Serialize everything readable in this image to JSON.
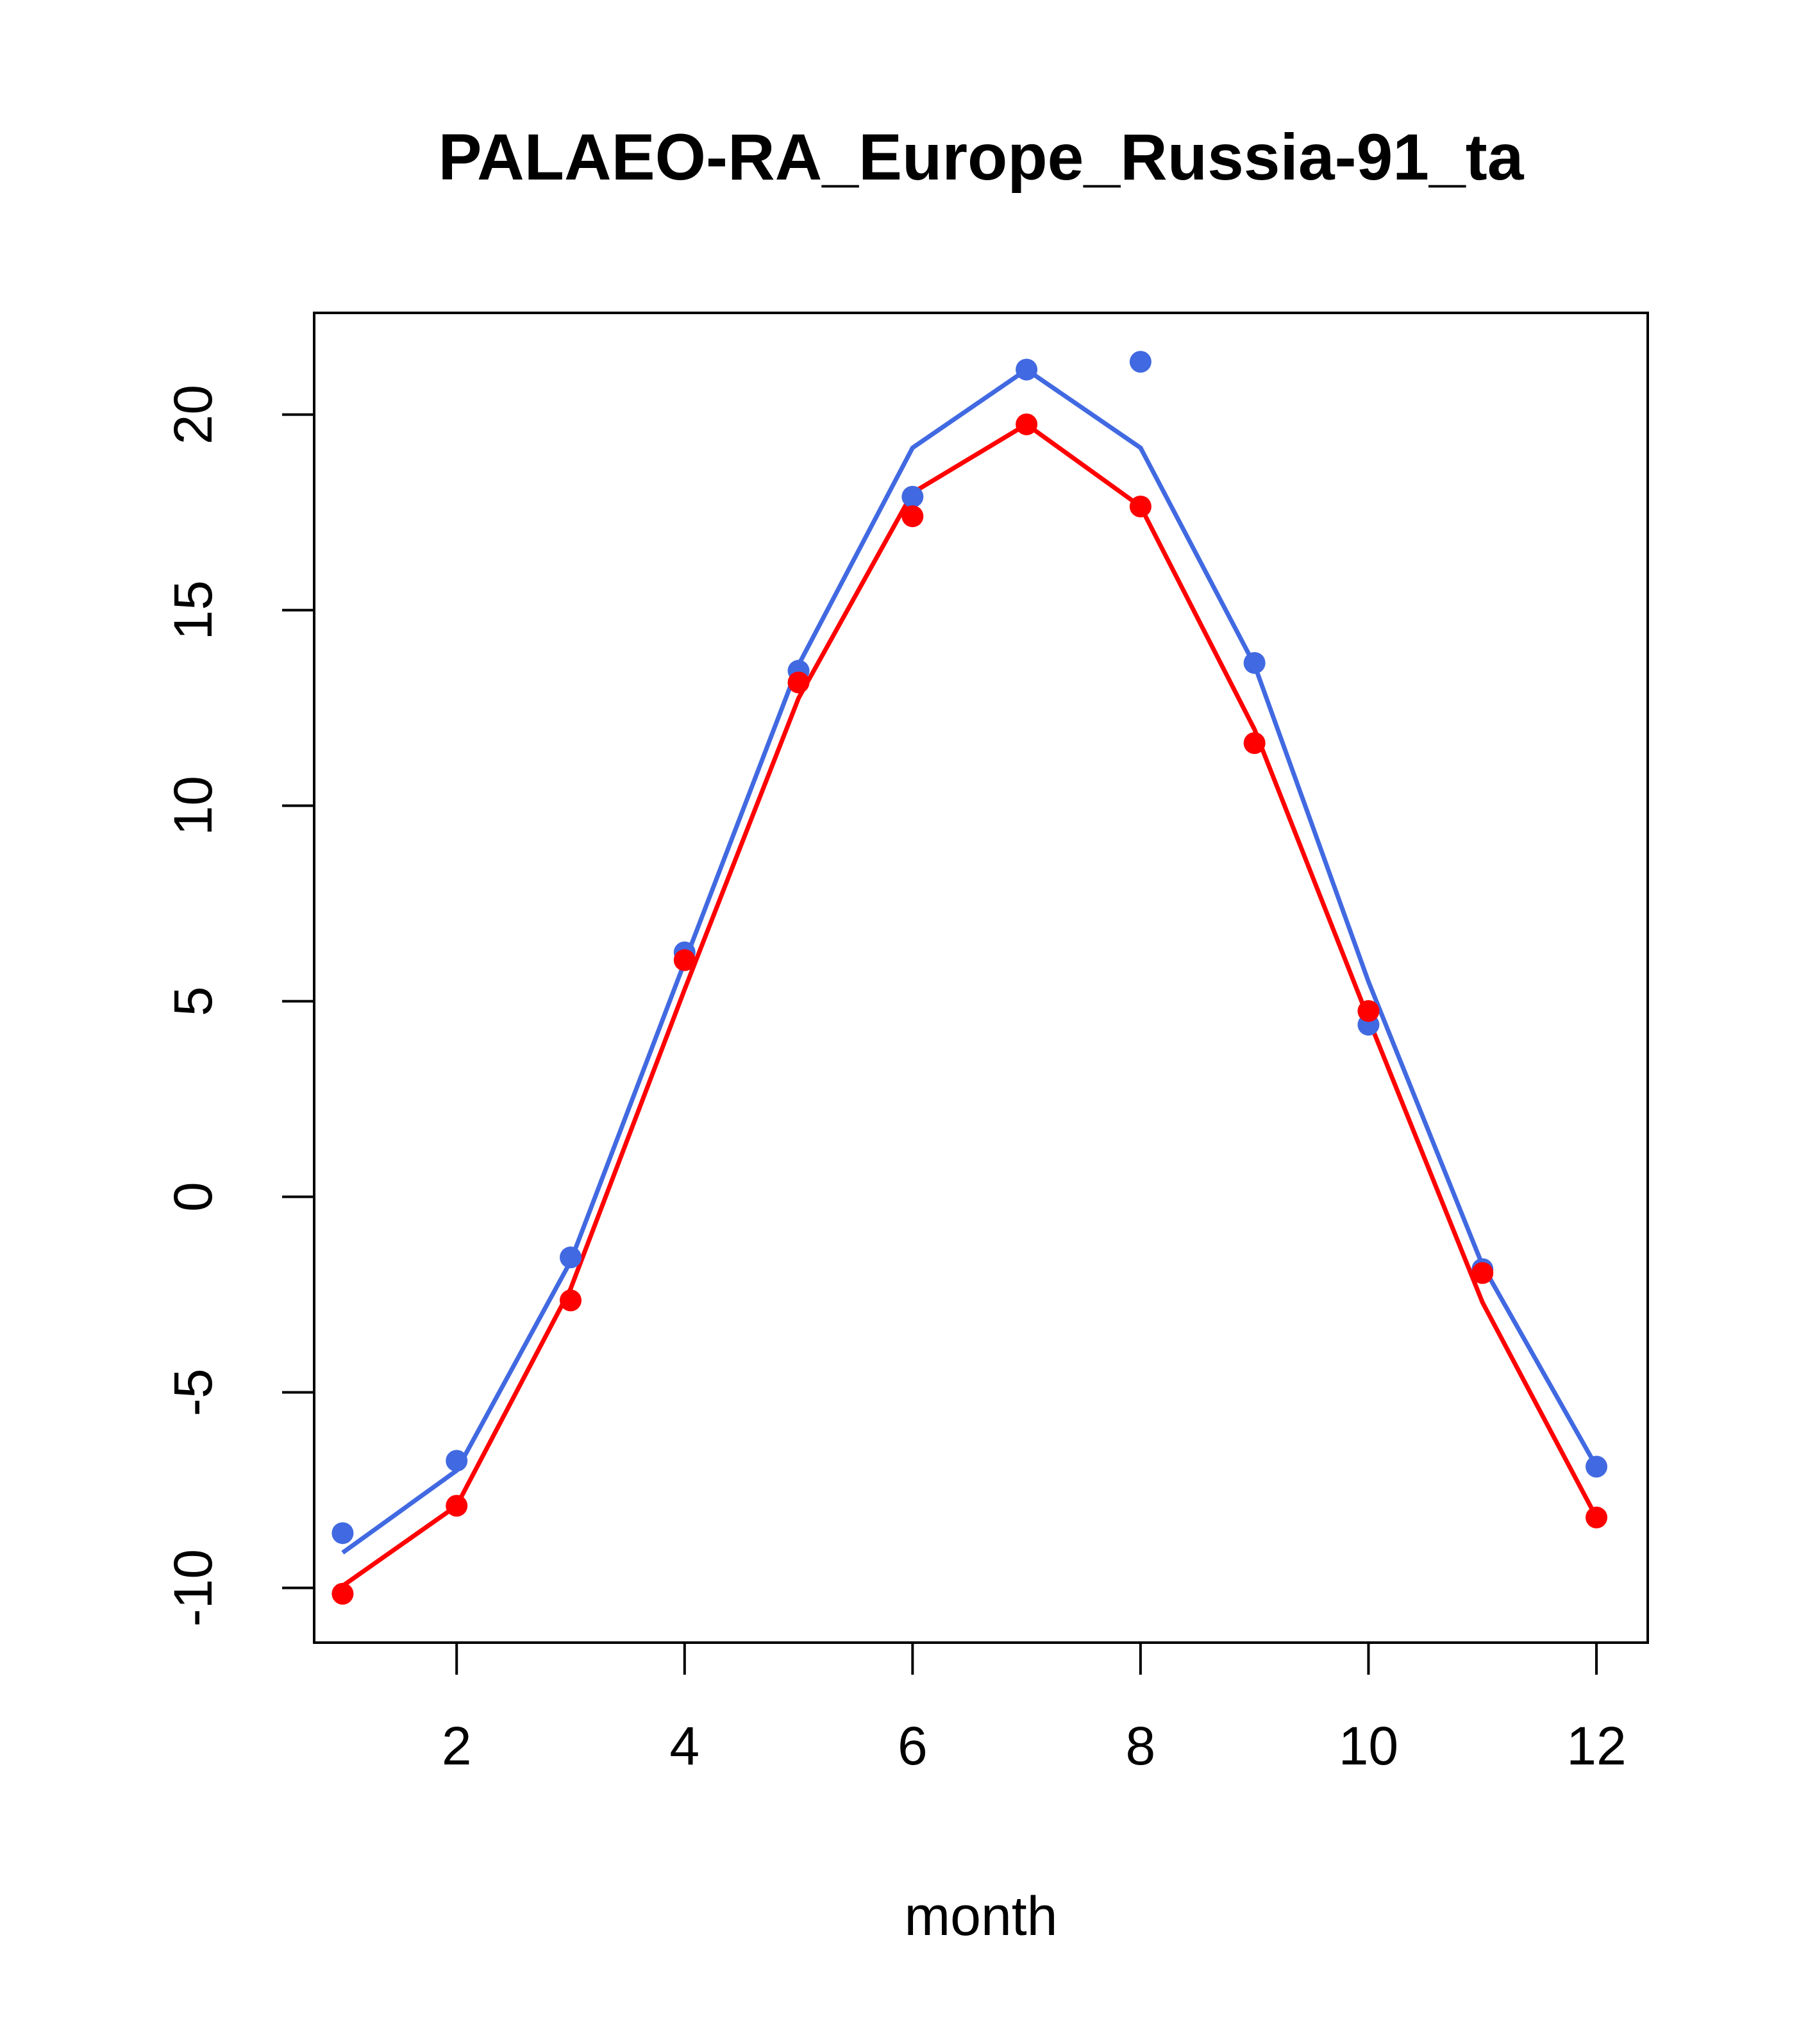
{
  "chart_data": {
    "type": "line",
    "title": "PALAEO-RA_Europe_Russia-91_ta",
    "xlabel": "month",
    "ylabel": "",
    "xlim": [
      0.75,
      12.45
    ],
    "ylim": [
      -11.4,
      22.6
    ],
    "x_ticks": [
      2,
      4,
      6,
      8,
      10,
      12
    ],
    "x_tick_labels": [
      "2",
      "4",
      "6",
      "8",
      "10",
      "12"
    ],
    "y_ticks": [
      -10,
      -5,
      0,
      5,
      10,
      15,
      20
    ],
    "y_tick_labels": [
      "-10",
      "-5",
      "0",
      "5",
      "10",
      "15",
      "20"
    ],
    "x": [
      1,
      2,
      3,
      4,
      5,
      6,
      7,
      8,
      9,
      10,
      11,
      12
    ],
    "series": [
      {
        "name": "blue-points",
        "kind": "points",
        "color": "#4169E1",
        "values": [
          -8.6,
          -6.75,
          -1.55,
          6.25,
          13.45,
          17.9,
          21.15,
          21.35,
          13.65,
          4.4,
          -1.85,
          -6.9
        ]
      },
      {
        "name": "blue-line",
        "kind": "line",
        "color": "#4169E1",
        "values": [
          -9.1,
          -7.0,
          -1.65,
          6.0,
          13.6,
          19.15,
          21.15,
          19.15,
          13.6,
          5.5,
          -1.75,
          -6.9
        ]
      },
      {
        "name": "red-points",
        "kind": "points",
        "color": "#FF0000",
        "values": [
          -10.15,
          -7.9,
          -2.65,
          6.05,
          13.15,
          17.4,
          19.75,
          17.65,
          11.6,
          4.75,
          -1.95,
          -8.2
        ]
      },
      {
        "name": "red-line",
        "kind": "line",
        "color": "#FF0000",
        "values": [
          -9.95,
          -7.9,
          -2.35,
          5.3,
          12.75,
          18.0,
          19.75,
          17.65,
          11.95,
          4.55,
          -2.7,
          -8.2
        ]
      }
    ],
    "grid": false,
    "legend": "none"
  }
}
